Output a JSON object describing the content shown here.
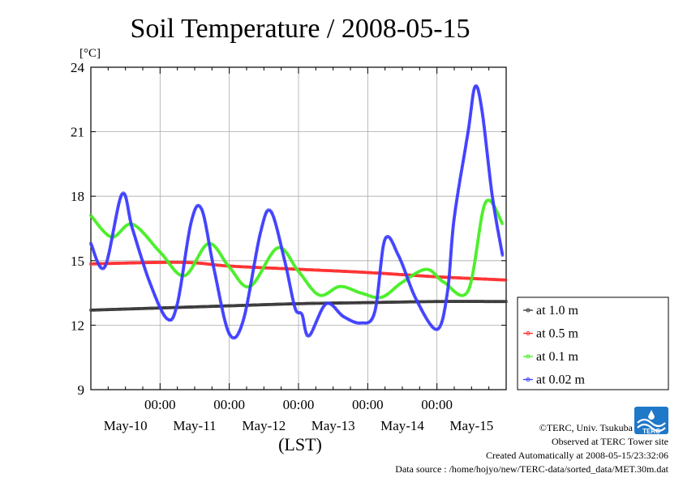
{
  "chart_data": {
    "type": "line",
    "title": "Soil Temperature / 2008-05-15",
    "ylabel": "[°C]",
    "xlabel": "(LST)",
    "ylim": [
      9,
      24
    ],
    "yticks": [
      9,
      12,
      15,
      18,
      21,
      24
    ],
    "xlim_days": [
      0,
      6
    ],
    "time_ticks": [
      "00:00",
      "00:00",
      "00:00",
      "00:00",
      "00:00"
    ],
    "date_labels": [
      "May-10",
      "May-11",
      "May-12",
      "May-13",
      "May-14",
      "May-15"
    ],
    "grid": true,
    "legend_position": "right-bottom",
    "series": [
      {
        "name": "at 1.0 m",
        "color": "#333333",
        "marker": "dot",
        "x": [
          0.0,
          1.0,
          2.0,
          3.0,
          4.0,
          5.0,
          6.0
        ],
        "values": [
          12.7,
          12.8,
          12.9,
          13.0,
          13.05,
          13.1,
          13.1
        ]
      },
      {
        "name": "at 0.5 m",
        "color": "#ff2a2a",
        "marker": "dot",
        "x": [
          0.0,
          1.0,
          1.5,
          2.0,
          3.0,
          4.0,
          5.0,
          6.0
        ],
        "values": [
          14.85,
          14.92,
          14.9,
          14.75,
          14.6,
          14.45,
          14.25,
          14.1
        ]
      },
      {
        "name": "at 0.1 m",
        "color": "#44ee22",
        "marker": "dot",
        "x": [
          0.0,
          0.3,
          0.6,
          1.0,
          1.35,
          1.7,
          2.0,
          2.3,
          2.7,
          3.0,
          3.3,
          3.6,
          3.9,
          4.2,
          4.5,
          4.85,
          5.1,
          5.45,
          5.7,
          5.95
        ],
        "values": [
          17.1,
          16.1,
          16.7,
          15.4,
          14.3,
          15.8,
          14.7,
          13.8,
          15.6,
          14.5,
          13.4,
          13.8,
          13.5,
          13.3,
          14.0,
          14.6,
          14.0,
          13.6,
          17.7,
          16.7
        ],
        "comment_x": "days since 00:00 LST of the day before May-10"
      },
      {
        "name": "at 0.02 m",
        "color": "#3b3bff",
        "marker": "dot",
        "x": [
          0.0,
          0.2,
          0.45,
          0.6,
          0.85,
          1.1,
          1.25,
          1.45,
          1.6,
          1.78,
          2.0,
          2.2,
          2.45,
          2.6,
          2.8,
          2.95,
          3.05,
          3.15,
          3.4,
          3.65,
          3.9,
          4.1,
          4.25,
          4.45,
          4.7,
          5.0,
          5.15,
          5.25,
          5.45,
          5.55,
          5.65,
          5.8,
          5.95
        ],
        "values": [
          15.8,
          14.7,
          18.1,
          16.5,
          14.0,
          12.3,
          13.0,
          16.8,
          17.4,
          14.6,
          11.6,
          12.2,
          16.3,
          17.3,
          15.0,
          12.8,
          12.5,
          11.5,
          13.0,
          12.4,
          12.1,
          12.6,
          16.0,
          15.2,
          13.2,
          11.8,
          13.5,
          17.0,
          21.0,
          23.1,
          22.0,
          18.0,
          15.2
        ],
        "comment_x": "days since 00:00 LST of the day before May-10"
      }
    ]
  },
  "credits": {
    "copyright": "©TERC, Univ. Tsukuba",
    "observed": "Observed at TERC Tower site",
    "created": "Created Automatically at 2008-05-15/23:32:06",
    "source": "Data source : /home/hojyo/new/TERC-data/sorted_data/MET.30m.dat"
  },
  "logo_text": "TERC"
}
